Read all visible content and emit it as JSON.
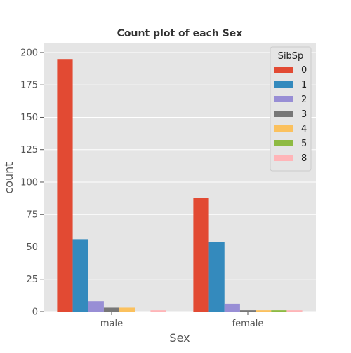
{
  "chart_data": {
    "type": "bar",
    "title": "Count plot of each Sex",
    "xlabel": "Sex",
    "ylabel": "count",
    "categories": [
      "male",
      "female"
    ],
    "ylim": [
      0,
      207
    ],
    "yticks": [
      0,
      25,
      50,
      75,
      100,
      125,
      150,
      175,
      200
    ],
    "grid": true,
    "legend": {
      "title": "SibSp",
      "placement": "top-right"
    },
    "series": [
      {
        "name": "0",
        "color": "#E24A33",
        "values": [
          195,
          88
        ]
      },
      {
        "name": "1",
        "color": "#348ABD",
        "values": [
          56,
          54
        ]
      },
      {
        "name": "2",
        "color": "#988ED5",
        "values": [
          8,
          6
        ]
      },
      {
        "name": "3",
        "color": "#777777",
        "values": [
          3,
          1
        ]
      },
      {
        "name": "4",
        "color": "#FBC15E",
        "values": [
          3,
          1
        ]
      },
      {
        "name": "5",
        "color": "#8EBA42",
        "values": [
          0,
          1
        ]
      },
      {
        "name": "8",
        "color": "#FFB5B8",
        "values": [
          1,
          1
        ]
      }
    ]
  }
}
